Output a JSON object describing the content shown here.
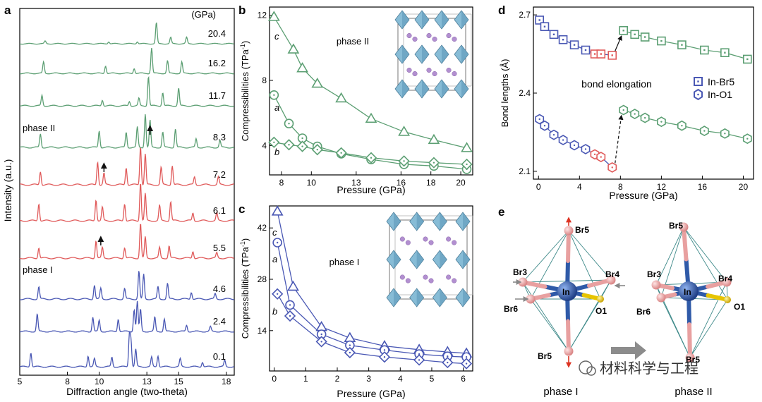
{
  "colors": {
    "phase1": "#4a58b4",
    "transition": "#e05a5a",
    "phase2": "#5c9f73",
    "octa_face": "#87bcd6",
    "octa_edge": "#4d7d99",
    "atom_purple": "#b28fd0",
    "in_atom": "#2f5aa8",
    "br_atom": "#efaaaa",
    "o_atom": "#e6c400",
    "arrow_red": "#dd3322",
    "arrow_gray": "#888888"
  },
  "watermark": "材料科学与工程",
  "chart_data": [
    {
      "panel": "a",
      "type": "line",
      "xlabel": "Diffraction angle (two-theta)",
      "ylabel": "Intensity (a.u.)",
      "unit_label": "(GPa)",
      "xlim": [
        5,
        18.5
      ],
      "xticks": [
        "5",
        "8",
        "10",
        "13",
        "15",
        "18"
      ],
      "phase_labels": [
        "phase II",
        "phase I"
      ],
      "series": [
        {
          "name": "20.4",
          "phase": 2,
          "peaks": [
            [
              6.6,
              0.12
            ],
            [
              10.6,
              0.1
            ],
            [
              12.4,
              0.1
            ],
            [
              13.6,
              1.0
            ],
            [
              14.5,
              0.3
            ],
            [
              15.5,
              0.3
            ]
          ]
        },
        {
          "name": "16.2",
          "phase": 2,
          "peaks": [
            [
              6.5,
              0.45
            ],
            [
              10.4,
              0.3
            ],
            [
              12.2,
              0.2
            ],
            [
              13.3,
              1.0
            ],
            [
              14.3,
              0.5
            ],
            [
              15.2,
              0.45
            ]
          ]
        },
        {
          "name": "11.7",
          "phase": 2,
          "peaks": [
            [
              6.4,
              0.35
            ],
            [
              10.2,
              0.2
            ],
            [
              11.9,
              0.15
            ],
            [
              12.5,
              0.25
            ],
            [
              13.1,
              1.0
            ],
            [
              14.0,
              0.45
            ],
            [
              15.0,
              0.6
            ]
          ]
        },
        {
          "name": "8.3",
          "phase": 2,
          "peaks": [
            [
              6.3,
              0.4
            ],
            [
              10.0,
              0.5
            ],
            [
              11.7,
              0.45
            ],
            [
              12.4,
              0.6
            ],
            [
              12.9,
              1.0
            ],
            [
              13.2,
              0.8
            ],
            [
              14.0,
              0.45
            ],
            [
              14.8,
              0.55
            ],
            [
              16.1,
              0.25
            ],
            [
              17.6,
              0.2
            ]
          ]
        },
        {
          "name": "7.2",
          "phase": "t",
          "peaks": [
            [
              6.3,
              0.35
            ],
            [
              9.9,
              0.6
            ],
            [
              10.3,
              0.3
            ],
            [
              11.7,
              0.45
            ],
            [
              12.6,
              1.0
            ],
            [
              12.9,
              0.8
            ],
            [
              13.9,
              0.45
            ],
            [
              14.6,
              0.5
            ],
            [
              16.0,
              0.2
            ],
            [
              17.5,
              0.2
            ]
          ]
        },
        {
          "name": "6.1",
          "phase": "t",
          "peaks": [
            [
              6.2,
              0.45
            ],
            [
              9.8,
              0.55
            ],
            [
              10.2,
              0.35
            ],
            [
              11.6,
              0.45
            ],
            [
              12.6,
              1.0
            ],
            [
              12.9,
              0.7
            ],
            [
              13.8,
              0.4
            ],
            [
              14.5,
              0.5
            ],
            [
              15.9,
              0.2
            ],
            [
              17.4,
              0.2
            ]
          ]
        },
        {
          "name": "5.5",
          "phase": "t",
          "peaks": [
            [
              6.2,
              0.3
            ],
            [
              9.8,
              0.5
            ],
            [
              10.2,
              0.3
            ],
            [
              11.6,
              0.3
            ],
            [
              12.6,
              1.0
            ],
            [
              12.9,
              0.6
            ],
            [
              13.8,
              0.3
            ],
            [
              14.4,
              0.35
            ],
            [
              15.9,
              0.2
            ],
            [
              17.4,
              0.15
            ]
          ]
        },
        {
          "name": "4.6",
          "phase": 1,
          "peaks": [
            [
              6.2,
              0.35
            ],
            [
              9.7,
              0.4
            ],
            [
              10.1,
              0.3
            ],
            [
              11.6,
              0.3
            ],
            [
              12.5,
              0.8
            ],
            [
              12.8,
              0.7
            ],
            [
              13.7,
              0.35
            ],
            [
              14.3,
              0.45
            ],
            [
              15.8,
              0.2
            ],
            [
              17.3,
              0.15
            ]
          ]
        },
        {
          "name": "2.4",
          "phase": 1,
          "peaks": [
            [
              6.1,
              0.55
            ],
            [
              9.6,
              0.45
            ],
            [
              10.0,
              0.35
            ],
            [
              11.2,
              0.4
            ],
            [
              12.2,
              0.7
            ],
            [
              12.4,
              0.95
            ],
            [
              12.6,
              0.7
            ],
            [
              13.5,
              0.45
            ],
            [
              14.1,
              0.4
            ],
            [
              15.5,
              0.2
            ],
            [
              17.0,
              0.15
            ]
          ]
        },
        {
          "name": "0.1",
          "phase": 1,
          "peaks": [
            [
              5.7,
              0.45
            ],
            [
              9.3,
              0.35
            ],
            [
              9.7,
              0.25
            ],
            [
              10.8,
              0.3
            ],
            [
              11.9,
              1.0
            ],
            [
              12.0,
              0.8
            ],
            [
              12.3,
              0.55
            ],
            [
              13.3,
              0.3
            ],
            [
              13.7,
              0.35
            ],
            [
              15.1,
              0.25
            ],
            [
              16.5,
              0.15
            ],
            [
              17.9,
              0.2
            ]
          ]
        }
      ],
      "annotations": [
        {
          "type": "arrow-up",
          "series": "7.2",
          "x": 10.3
        },
        {
          "type": "arrow-up",
          "series": "8.3",
          "x": 13.2
        },
        {
          "type": "arrow-up",
          "series": "5.5",
          "x": 10.1
        }
      ]
    },
    {
      "panel": "b",
      "type": "line",
      "title": "phase II",
      "xlabel": "Pressure (GPa)",
      "ylabel": "Compressibilities (TPa",
      "ylabel_sup": "-1",
      "ylabel_end": ")",
      "xlim": [
        7.2,
        20.8
      ],
      "ylim": [
        2.2,
        12.5
      ],
      "xticks": [
        8,
        10,
        13,
        16,
        18,
        20
      ],
      "yticks": [
        4,
        8,
        12
      ],
      "series": [
        {
          "name": "c",
          "marker": "triangle",
          "x": [
            7.5,
            8.8,
            9.4,
            10.4,
            12.0,
            14.0,
            16.2,
            18.2,
            20.4
          ],
          "y": [
            11.9,
            9.9,
            8.75,
            7.8,
            6.9,
            5.65,
            4.85,
            4.35,
            3.85
          ]
        },
        {
          "name": "a",
          "marker": "circle",
          "x": [
            7.5,
            8.5,
            9.4,
            10.4,
            12.0,
            14.0,
            16.2,
            18.2,
            20.4
          ],
          "y": [
            7.1,
            5.35,
            4.45,
            3.95,
            3.5,
            3.15,
            2.85,
            2.75,
            2.55
          ]
        },
        {
          "name": "b",
          "marker": "diamond",
          "x": [
            7.5,
            8.5,
            9.4,
            10.4,
            12.0,
            14.0,
            16.2,
            18.2,
            20.4
          ],
          "y": [
            4.2,
            4.05,
            3.95,
            3.75,
            3.55,
            3.25,
            3.05,
            2.95,
            2.85
          ]
        }
      ]
    },
    {
      "panel": "c",
      "type": "line",
      "title": "phase I",
      "xlabel": "Pressure (GPa)",
      "ylabel": "Compressibilities (TPa",
      "ylabel_sup": "-1",
      "ylabel_end": ")",
      "xlim": [
        -0.15,
        6.3
      ],
      "ylim": [
        3,
        48
      ],
      "xticks": [
        0,
        1,
        2,
        3,
        4,
        5,
        6
      ],
      "yticks": [
        14,
        28,
        42
      ],
      "series": [
        {
          "name": "c",
          "marker": "triangle",
          "x": [
            0.1,
            0.6,
            1.5,
            2.4,
            3.5,
            4.6,
            5.5,
            6.1
          ],
          "y": [
            46.5,
            26.0,
            15.0,
            12.0,
            9.8,
            8.8,
            8.2,
            7.8
          ]
        },
        {
          "name": "a",
          "marker": "circle",
          "x": [
            0.1,
            0.5,
            1.5,
            2.4,
            3.5,
            4.6,
            5.5,
            6.1
          ],
          "y": [
            38.0,
            21.0,
            13.0,
            10.0,
            8.7,
            7.6,
            7.0,
            6.8
          ]
        },
        {
          "name": "b",
          "marker": "diamond",
          "x": [
            0.1,
            0.5,
            1.5,
            2.4,
            3.5,
            4.6,
            5.5,
            6.1
          ],
          "y": [
            24.0,
            18.0,
            11.0,
            8.0,
            6.8,
            6.0,
            5.3,
            5.0
          ]
        }
      ]
    },
    {
      "panel": "d",
      "type": "line",
      "xlabel": "Pressure (GPa)",
      "ylabel": "Bond lengths (Å)",
      "annotation": "bond elongation",
      "xlim": [
        -0.5,
        21
      ],
      "ylim": [
        2.07,
        2.73
      ],
      "xticks": [
        0,
        4,
        8,
        12,
        16,
        20
      ],
      "yticks": [
        2.1,
        2.4,
        2.7
      ],
      "legend": [
        "In-Br5",
        "In-O1"
      ],
      "series": [
        {
          "name": "In-Br5",
          "marker": "square",
          "x": [
            0.1,
            0.6,
            1.5,
            2.4,
            3.5,
            4.6,
            5.5,
            6.1,
            7.2,
            8.3,
            9.4,
            10.4,
            12.0,
            14.0,
            16.2,
            18.2,
            20.4
          ],
          "phase": [
            1,
            1,
            1,
            1,
            1,
            1,
            "t",
            "t",
            "t",
            2,
            2,
            2,
            2,
            2,
            2,
            2,
            2
          ],
          "y": [
            2.68,
            2.655,
            2.625,
            2.605,
            2.585,
            2.565,
            2.55,
            2.55,
            2.545,
            2.64,
            2.625,
            2.615,
            2.6,
            2.585,
            2.565,
            2.555,
            2.53
          ]
        },
        {
          "name": "In-O1",
          "marker": "hexagon",
          "x": [
            0.1,
            0.6,
            1.5,
            2.4,
            3.5,
            4.6,
            5.5,
            6.1,
            7.2,
            8.3,
            9.4,
            10.4,
            12.0,
            14.0,
            16.2,
            18.2,
            20.4
          ],
          "phase": [
            1,
            1,
            1,
            1,
            1,
            1,
            "t",
            "t",
            "t",
            2,
            2,
            2,
            2,
            2,
            2,
            2,
            2
          ],
          "y": [
            2.3,
            2.275,
            2.24,
            2.22,
            2.2,
            2.185,
            2.165,
            2.155,
            2.115,
            2.335,
            2.32,
            2.305,
            2.29,
            2.275,
            2.255,
            2.245,
            2.225
          ]
        }
      ]
    },
    {
      "panel": "e",
      "type": "diagram",
      "labels": [
        "Br5",
        "Br3",
        "Br4",
        "In",
        "Br6",
        "O1",
        "Br5"
      ],
      "captions": [
        "phase I",
        "phase II"
      ]
    }
  ]
}
